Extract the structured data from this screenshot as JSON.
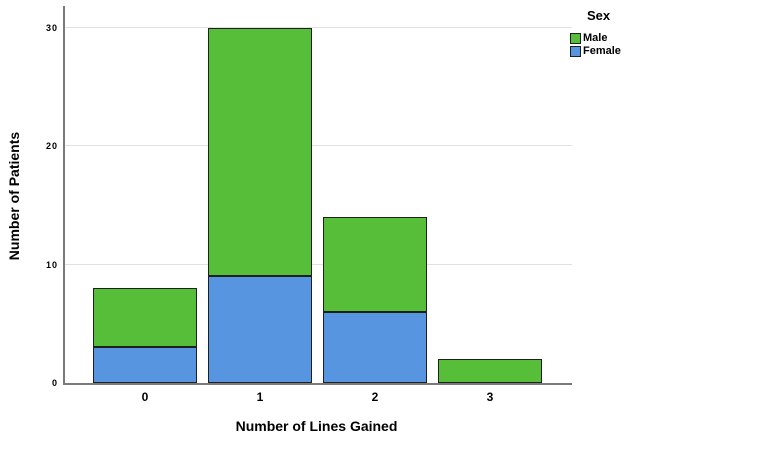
{
  "chart_data": {
    "type": "bar",
    "stacked": true,
    "xlabel": "Number of Lines Gained",
    "ylabel": "Number of Patients",
    "categories": [
      "0",
      "1",
      "2",
      "3"
    ],
    "series": [
      {
        "name": "Female",
        "color": "#5795e0",
        "values": [
          3,
          9,
          6,
          0
        ]
      },
      {
        "name": "Male",
        "color": "#56be38",
        "values": [
          5,
          21,
          8,
          2
        ]
      }
    ],
    "totals": [
      8,
      30,
      14,
      2
    ],
    "ylim": [
      0,
      30
    ],
    "yticks": [
      0,
      10,
      20,
      30
    ],
    "grid": true,
    "legend_title": "Sex",
    "legend_position": "top-right"
  },
  "legend": {
    "title": "Sex",
    "items": [
      {
        "label": "Male",
        "color": "#56be38"
      },
      {
        "label": "Female",
        "color": "#5795e0"
      }
    ]
  },
  "colors": {
    "male_green": "#56be38",
    "female_blue": "#5795e0",
    "axis": "#7a7a7a",
    "gridline": "#e0e0e0",
    "bar_border": "#1f1f1f",
    "background": "#ffffff",
    "text": "#000000"
  }
}
